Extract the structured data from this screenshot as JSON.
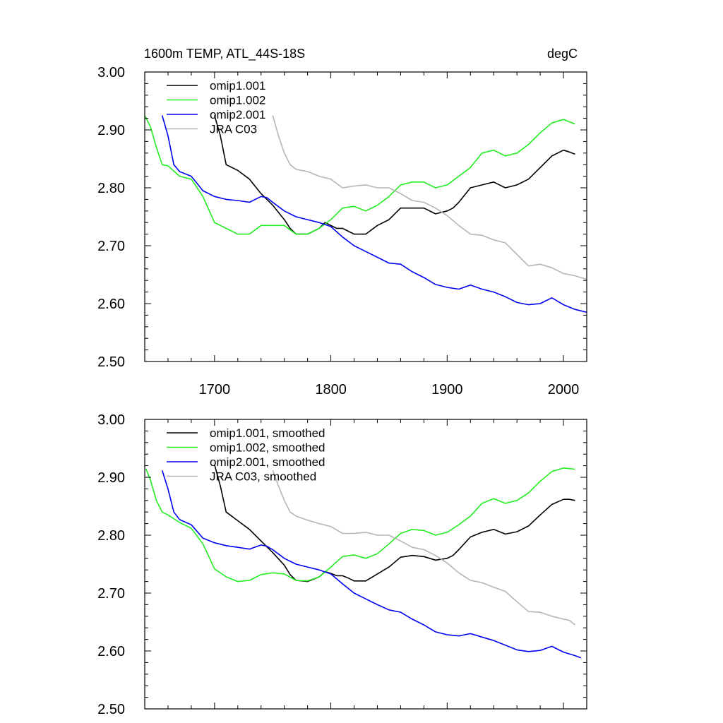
{
  "chart_data": [
    {
      "type": "line",
      "title": "1600m TEMP, ATL_44S-18S",
      "units": "degC",
      "xlim": [
        1640,
        2020
      ],
      "ylim": [
        2.5,
        3.0
      ],
      "xticks": [
        1700,
        1800,
        1900,
        2000
      ],
      "xtick_labels": [
        "1700",
        "1800",
        "1900",
        "2000"
      ],
      "yticks": [
        2.5,
        2.6,
        2.7,
        2.8,
        2.9,
        3.0
      ],
      "ytick_labels": [
        "2.50",
        "2.60",
        "2.70",
        "2.80",
        "2.90",
        "3.00"
      ],
      "legend_position": "top-left",
      "grid": false,
      "series": [
        {
          "name": "omip1.001",
          "color": "#000000",
          "x": [
            1700,
            1705,
            1710,
            1720,
            1730,
            1740,
            1750,
            1760,
            1765,
            1770,
            1780,
            1790,
            1795,
            1800,
            1805,
            1810,
            1815,
            1820,
            1830,
            1840,
            1850,
            1860,
            1870,
            1880,
            1890,
            1900,
            1905,
            1910,
            1920,
            1930,
            1940,
            1950,
            1960,
            1970,
            1980,
            1990,
            2000,
            2005,
            2010
          ],
          "y": [
            2.925,
            2.89,
            2.84,
            2.83,
            2.815,
            2.79,
            2.77,
            2.745,
            2.73,
            2.72,
            2.72,
            2.73,
            2.74,
            2.735,
            2.73,
            2.73,
            2.725,
            2.72,
            2.72,
            2.735,
            2.745,
            2.765,
            2.765,
            2.765,
            2.755,
            2.76,
            2.765,
            2.775,
            2.8,
            2.805,
            2.81,
            2.8,
            2.805,
            2.815,
            2.835,
            2.855,
            2.865,
            2.862,
            2.858
          ]
        },
        {
          "name": "omip1.002",
          "color": "#22ee22",
          "x": [
            1640,
            1645,
            1650,
            1655,
            1660,
            1670,
            1680,
            1690,
            1700,
            1710,
            1720,
            1730,
            1740,
            1750,
            1760,
            1770,
            1780,
            1790,
            1800,
            1810,
            1820,
            1830,
            1840,
            1850,
            1860,
            1870,
            1880,
            1890,
            1900,
            1910,
            1920,
            1930,
            1940,
            1950,
            1960,
            1970,
            1980,
            1990,
            2000,
            2005,
            2010
          ],
          "y": [
            2.925,
            2.905,
            2.87,
            2.84,
            2.838,
            2.82,
            2.815,
            2.785,
            2.74,
            2.73,
            2.72,
            2.72,
            2.735,
            2.735,
            2.735,
            2.72,
            2.72,
            2.73,
            2.745,
            2.765,
            2.768,
            2.76,
            2.77,
            2.785,
            2.805,
            2.81,
            2.81,
            2.8,
            2.805,
            2.82,
            2.835,
            2.86,
            2.865,
            2.855,
            2.86,
            2.875,
            2.895,
            2.912,
            2.918,
            2.914,
            2.91
          ]
        },
        {
          "name": "omip2.001",
          "color": "#0000ee",
          "x": [
            1655,
            1660,
            1665,
            1670,
            1680,
            1690,
            1700,
            1710,
            1720,
            1730,
            1740,
            1745,
            1750,
            1760,
            1770,
            1780,
            1790,
            1800,
            1810,
            1820,
            1830,
            1840,
            1850,
            1860,
            1870,
            1880,
            1890,
            1900,
            1910,
            1920,
            1930,
            1940,
            1950,
            1960,
            1970,
            1980,
            1990,
            2000,
            2010,
            2020
          ],
          "y": [
            2.925,
            2.89,
            2.84,
            2.828,
            2.82,
            2.795,
            2.785,
            2.78,
            2.778,
            2.775,
            2.785,
            2.783,
            2.775,
            2.76,
            2.75,
            2.745,
            2.74,
            2.733,
            2.715,
            2.7,
            2.69,
            2.68,
            2.67,
            2.668,
            2.655,
            2.645,
            2.633,
            2.628,
            2.625,
            2.632,
            2.625,
            2.62,
            2.612,
            2.602,
            2.598,
            2.6,
            2.61,
            2.598,
            2.59,
            2.585
          ]
        },
        {
          "name": "JRA C03",
          "color": "#b5b5b5",
          "x": [
            1750,
            1755,
            1760,
            1765,
            1770,
            1780,
            1790,
            1800,
            1810,
            1820,
            1830,
            1840,
            1850,
            1860,
            1870,
            1880,
            1890,
            1900,
            1910,
            1920,
            1930,
            1940,
            1950,
            1960,
            1970,
            1980,
            1990,
            2000,
            2010,
            2020
          ],
          "y": [
            2.925,
            2.89,
            2.86,
            2.84,
            2.832,
            2.828,
            2.82,
            2.815,
            2.8,
            2.803,
            2.805,
            2.8,
            2.8,
            2.79,
            2.778,
            2.775,
            2.765,
            2.752,
            2.735,
            2.72,
            2.718,
            2.71,
            2.705,
            2.685,
            2.665,
            2.668,
            2.662,
            2.652,
            2.648,
            2.642
          ]
        }
      ]
    },
    {
      "type": "line",
      "xlim": [
        1640,
        2020
      ],
      "ylim": [
        2.5,
        3.0
      ],
      "xticks": [
        1700,
        1800,
        1900,
        2000
      ],
      "yticks": [
        2.5,
        2.6,
        2.7,
        2.8,
        2.9,
        3.0
      ],
      "ytick_labels": [
        "2.50",
        "2.60",
        "2.70",
        "2.80",
        "2.90",
        "3.00"
      ],
      "legend_position": "top-left",
      "grid": false,
      "series": [
        {
          "name": "omip1.001, smoothed",
          "color": "#000000",
          "x": [
            1700,
            1705,
            1710,
            1720,
            1730,
            1740,
            1750,
            1760,
            1765,
            1770,
            1780,
            1790,
            1795,
            1800,
            1805,
            1810,
            1815,
            1820,
            1830,
            1840,
            1850,
            1860,
            1870,
            1880,
            1890,
            1900,
            1905,
            1910,
            1920,
            1930,
            1940,
            1950,
            1960,
            1970,
            1980,
            1990,
            2000,
            2005,
            2010
          ],
          "y": [
            2.922,
            2.885,
            2.84,
            2.825,
            2.81,
            2.79,
            2.77,
            2.748,
            2.732,
            2.722,
            2.72,
            2.728,
            2.737,
            2.734,
            2.73,
            2.73,
            2.726,
            2.721,
            2.721,
            2.733,
            2.745,
            2.762,
            2.765,
            2.763,
            2.757,
            2.76,
            2.765,
            2.775,
            2.797,
            2.805,
            2.81,
            2.802,
            2.806,
            2.816,
            2.835,
            2.853,
            2.862,
            2.862,
            2.86
          ]
        },
        {
          "name": "omip1.002, smoothed",
          "color": "#22ee22",
          "x": [
            1641,
            1645,
            1650,
            1655,
            1660,
            1670,
            1680,
            1690,
            1700,
            1710,
            1720,
            1730,
            1740,
            1750,
            1760,
            1770,
            1780,
            1790,
            1800,
            1810,
            1820,
            1830,
            1840,
            1850,
            1860,
            1870,
            1880,
            1890,
            1900,
            1910,
            1920,
            1930,
            1940,
            1950,
            1960,
            1970,
            1980,
            1990,
            2000,
            2005,
            2010
          ],
          "y": [
            2.915,
            2.895,
            2.86,
            2.84,
            2.835,
            2.822,
            2.812,
            2.785,
            2.742,
            2.728,
            2.72,
            2.722,
            2.732,
            2.735,
            2.733,
            2.722,
            2.721,
            2.728,
            2.745,
            2.763,
            2.766,
            2.76,
            2.768,
            2.785,
            2.803,
            2.81,
            2.808,
            2.8,
            2.805,
            2.818,
            2.833,
            2.855,
            2.863,
            2.855,
            2.86,
            2.873,
            2.893,
            2.91,
            2.916,
            2.915,
            2.914
          ]
        },
        {
          "name": "omip2.001, smoothed",
          "color": "#0000ee",
          "x": [
            1655,
            1660,
            1665,
            1670,
            1680,
            1690,
            1700,
            1710,
            1720,
            1730,
            1740,
            1745,
            1750,
            1760,
            1770,
            1780,
            1790,
            1800,
            1810,
            1820,
            1830,
            1840,
            1850,
            1860,
            1870,
            1880,
            1890,
            1900,
            1910,
            1920,
            1930,
            1940,
            1950,
            1960,
            1970,
            1980,
            1990,
            2000,
            2010,
            2015
          ],
          "y": [
            2.912,
            2.88,
            2.84,
            2.827,
            2.818,
            2.795,
            2.787,
            2.782,
            2.779,
            2.776,
            2.783,
            2.781,
            2.775,
            2.76,
            2.75,
            2.745,
            2.74,
            2.733,
            2.716,
            2.7,
            2.69,
            2.68,
            2.671,
            2.667,
            2.655,
            2.645,
            2.633,
            2.628,
            2.626,
            2.63,
            2.624,
            2.618,
            2.61,
            2.602,
            2.599,
            2.601,
            2.608,
            2.598,
            2.592,
            2.588
          ]
        },
        {
          "name": "JRA C03, smoothed",
          "color": "#b5b5b5",
          "x": [
            1750,
            1755,
            1760,
            1765,
            1770,
            1780,
            1790,
            1800,
            1810,
            1820,
            1830,
            1840,
            1850,
            1860,
            1870,
            1880,
            1890,
            1900,
            1910,
            1920,
            1930,
            1940,
            1950,
            1960,
            1970,
            1980,
            1990,
            2000,
            2005,
            2010
          ],
          "y": [
            2.912,
            2.885,
            2.86,
            2.84,
            2.833,
            2.826,
            2.82,
            2.815,
            2.803,
            2.803,
            2.805,
            2.8,
            2.8,
            2.79,
            2.779,
            2.775,
            2.765,
            2.752,
            2.735,
            2.722,
            2.718,
            2.71,
            2.703,
            2.685,
            2.668,
            2.667,
            2.66,
            2.655,
            2.653,
            2.645
          ]
        }
      ]
    }
  ]
}
